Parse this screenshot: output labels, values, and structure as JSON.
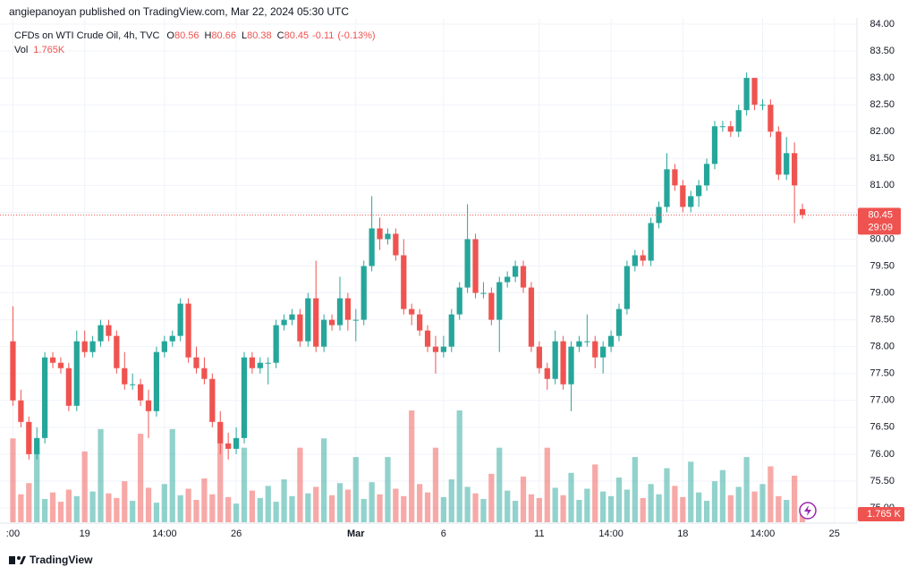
{
  "header": {
    "publisher": "angiepanoyan published on TradingView.com, Mar 22, 2024 05:30 UTC"
  },
  "footer": {
    "brand": "TradingView"
  },
  "chart_data": {
    "type": "candlestick",
    "title": "CFDs on WTI Crude Oil, 4h, TVC",
    "ohlc_labels": [
      "O",
      "H",
      "L",
      "C"
    ],
    "change": -0.11,
    "change_percent": {
      "value": -0.13,
      "label": "(-0.13%)"
    },
    "volume_title": "Vol",
    "volume_legend_label": "1.765K",
    "volume_axis_label": "1.765 K",
    "countdown": "29:09",
    "up_color": "#26a69a",
    "down_color": "#ef5350",
    "grid": true,
    "ylim": [
      75,
      84
    ],
    "yticks": [
      {
        "value": 75,
        "label": "75.00"
      },
      {
        "value": 75.5,
        "label": "75.50"
      },
      {
        "value": 76,
        "label": "76.00"
      },
      {
        "value": 76.5,
        "label": "76.50"
      },
      {
        "value": 77,
        "label": "77.00"
      },
      {
        "value": 77.5,
        "label": "77.50"
      },
      {
        "value": 78,
        "label": "78.00"
      },
      {
        "value": 78.5,
        "label": "78.50"
      },
      {
        "value": 79,
        "label": "79.00"
      },
      {
        "value": 79.5,
        "label": "79.50"
      },
      {
        "value": 80,
        "label": "80.00"
      },
      {
        "value": 80.5,
        "label": "80.50"
      },
      {
        "value": 81,
        "label": "81.00"
      },
      {
        "value": 81.5,
        "label": "81.50"
      },
      {
        "value": 82,
        "label": "82.00"
      },
      {
        "value": 82.5,
        "label": "82.50"
      },
      {
        "value": 83,
        "label": "83.00"
      },
      {
        "value": 83.5,
        "label": "83.50"
      },
      {
        "value": 84,
        "label": "84.00"
      }
    ],
    "categories": [
      ":00",
      null,
      null,
      null,
      null,
      null,
      null,
      null,
      null,
      "19",
      null,
      null,
      null,
      null,
      null,
      null,
      null,
      null,
      null,
      "14:00",
      null,
      null,
      null,
      null,
      null,
      null,
      null,
      null,
      "26",
      null,
      null,
      null,
      null,
      null,
      null,
      null,
      null,
      null,
      null,
      null,
      null,
      null,
      null,
      "Mar",
      null,
      null,
      null,
      null,
      null,
      null,
      null,
      null,
      null,
      null,
      "6",
      null,
      null,
      null,
      null,
      null,
      null,
      null,
      null,
      null,
      null,
      null,
      "11",
      null,
      null,
      null,
      null,
      null,
      null,
      null,
      null,
      "14:00",
      null,
      null,
      null,
      null,
      null,
      null,
      null,
      null,
      "18",
      null,
      null,
      null,
      null,
      null,
      null,
      null,
      null,
      null,
      "14:00",
      null,
      null,
      null,
      null,
      null,
      null,
      null,
      null,
      "25",
      null,
      null
    ],
    "open": [
      78.1,
      77.0,
      76.6,
      76.0,
      76.3,
      77.8,
      77.7,
      77.6,
      76.9,
      78.1,
      77.9,
      78.1,
      78.4,
      78.2,
      77.6,
      77.3,
      77.3,
      77.0,
      76.8,
      77.9,
      78.1,
      78.2,
      78.8,
      77.8,
      77.6,
      77.4,
      76.6,
      76.2,
      76.1,
      76.3,
      77.8,
      77.6,
      77.7,
      77.7,
      78.4,
      78.5,
      78.6,
      78.1,
      78.9,
      78.0,
      78.5,
      78.4,
      78.9,
      78.5,
      78.5,
      79.5,
      80.2,
      80.0,
      80.1,
      79.7,
      78.7,
      78.6,
      78.3,
      78.0,
      77.9,
      78.0,
      78.6,
      79.1,
      80.0,
      79.0,
      79.0,
      78.5,
      79.2,
      79.3,
      79.5,
      79.1,
      78.0,
      77.6,
      77.4,
      78.1,
      77.3,
      78.0,
      78.1,
      78.1,
      77.8,
      78.0,
      78.2,
      78.7,
      79.5,
      79.7,
      79.6,
      80.3,
      80.6,
      81.3,
      81.0,
      80.6,
      80.8,
      81.0,
      81.4,
      82.1,
      82.1,
      82.0,
      82.4,
      83.0,
      82.5,
      82.5,
      82.0,
      81.2,
      81.6,
      80.56,
      null,
      null,
      null,
      null,
      null,
      null
    ],
    "high": [
      78.75,
      77.2,
      76.7,
      76.5,
      77.9,
      77.9,
      77.8,
      77.7,
      78.3,
      78.3,
      78.2,
      78.5,
      78.5,
      78.3,
      77.9,
      77.5,
      77.4,
      77.2,
      78.0,
      78.2,
      78.3,
      78.9,
      78.9,
      78.0,
      77.8,
      77.5,
      76.8,
      76.4,
      76.5,
      77.9,
      77.9,
      77.8,
      77.8,
      78.5,
      78.6,
      78.7,
      78.7,
      79.0,
      79.6,
      78.6,
      78.6,
      79.3,
      79.0,
      78.7,
      79.6,
      80.8,
      80.4,
      80.2,
      80.2,
      80.0,
      78.8,
      78.7,
      78.4,
      78.2,
      78.2,
      78.7,
      79.2,
      80.65,
      80.1,
      79.2,
      79.1,
      79.3,
      79.4,
      79.6,
      79.6,
      79.2,
      78.1,
      77.7,
      78.3,
      78.2,
      78.1,
      78.2,
      78.6,
      78.2,
      78.1,
      78.3,
      78.8,
      79.6,
      79.8,
      79.8,
      80.4,
      80.7,
      81.6,
      81.4,
      81.1,
      80.9,
      81.1,
      81.5,
      82.2,
      82.2,
      82.2,
      82.5,
      83.1,
      83.0,
      82.6,
      82.6,
      82.1,
      81.9,
      81.8,
      80.66,
      null,
      null,
      null,
      null,
      null,
      null
    ],
    "low": [
      76.9,
      76.5,
      75.9,
      75.9,
      76.2,
      77.6,
      77.5,
      76.8,
      76.8,
      77.8,
      77.8,
      78.0,
      78.1,
      77.5,
      77.2,
      77.2,
      76.9,
      76.3,
      76.7,
      77.8,
      78.0,
      78.1,
      77.7,
      77.5,
      77.3,
      76.5,
      76.0,
      75.9,
      76.0,
      76.2,
      77.5,
      77.5,
      77.3,
      77.6,
      78.3,
      78.4,
      78.0,
      78.0,
      77.9,
      77.9,
      78.3,
      78.3,
      78.3,
      78.1,
      78.4,
      79.4,
      79.8,
      79.9,
      79.6,
      78.6,
      78.4,
      78.2,
      77.9,
      77.5,
      77.8,
      77.9,
      78.5,
      79.0,
      78.9,
      78.9,
      78.4,
      77.9,
      79.1,
      79.2,
      79.0,
      77.9,
      77.5,
      77.2,
      77.3,
      77.2,
      76.8,
      77.9,
      78.0,
      77.6,
      77.5,
      77.9,
      78.1,
      78.6,
      79.4,
      79.5,
      79.5,
      80.2,
      80.5,
      80.9,
      80.5,
      80.5,
      80.6,
      80.9,
      81.3,
      82.0,
      81.9,
      81.9,
      82.3,
      82.4,
      82.4,
      81.9,
      81.1,
      81.1,
      80.3,
      80.38,
      null,
      null,
      null,
      null,
      null,
      null
    ],
    "close": [
      77.0,
      76.6,
      76.0,
      76.3,
      77.8,
      77.7,
      77.6,
      76.9,
      78.1,
      77.9,
      78.1,
      78.4,
      78.2,
      77.6,
      77.3,
      77.3,
      77.0,
      76.8,
      77.9,
      78.1,
      78.2,
      78.8,
      77.8,
      77.6,
      77.4,
      76.6,
      76.2,
      76.1,
      76.3,
      77.8,
      77.6,
      77.7,
      77.7,
      78.4,
      78.5,
      78.6,
      78.1,
      78.9,
      78.0,
      78.5,
      78.4,
      78.9,
      78.5,
      78.5,
      79.5,
      80.2,
      80.0,
      80.1,
      79.7,
      78.7,
      78.6,
      78.3,
      78.0,
      77.9,
      78.0,
      78.6,
      79.1,
      80.0,
      79.0,
      79.0,
      78.5,
      79.2,
      79.3,
      79.5,
      79.1,
      78.0,
      77.6,
      77.4,
      78.1,
      77.3,
      78.0,
      78.1,
      78.1,
      77.8,
      78.0,
      78.2,
      78.7,
      79.5,
      79.7,
      79.6,
      80.3,
      80.6,
      81.3,
      81.0,
      80.6,
      80.8,
      81.0,
      81.4,
      82.1,
      82.1,
      82.0,
      82.4,
      83.0,
      82.5,
      82.5,
      82.0,
      81.2,
      81.6,
      81.0,
      80.45,
      null,
      null,
      null,
      null,
      null,
      null
    ],
    "volume": [
      9000,
      3000,
      4200,
      8000,
      2500,
      3200,
      2200,
      3500,
      2800,
      7600,
      3300,
      10000,
      3100,
      2600,
      4400,
      2300,
      9500,
      3700,
      2100,
      4100,
      10000,
      2900,
      3600,
      2400,
      4700,
      3000,
      8500,
      2700,
      2000,
      8000,
      3400,
      2600,
      3900,
      2200,
      4600,
      2800,
      8000,
      3100,
      3800,
      9000,
      2900,
      4200,
      3500,
      7000,
      2500,
      4300,
      3000,
      7000,
      3600,
      2800,
      12000,
      4100,
      3200,
      8000,
      2700,
      4600,
      12000,
      3800,
      3100,
      2500,
      5200,
      8000,
      3400,
      2300,
      4900,
      3000,
      2600,
      8000,
      3700,
      2900,
      5300,
      2400,
      3600,
      6200,
      3300,
      2800,
      4800,
      3500,
      7000,
      2600,
      4100,
      3000,
      5800,
      3900,
      2700,
      6500,
      3200,
      2300,
      4400,
      5600,
      2900,
      3800,
      7000,
      3300,
      4100,
      6000,
      2800,
      2400,
      5000,
      1765,
      null,
      null,
      null,
      null,
      null,
      null
    ]
  }
}
